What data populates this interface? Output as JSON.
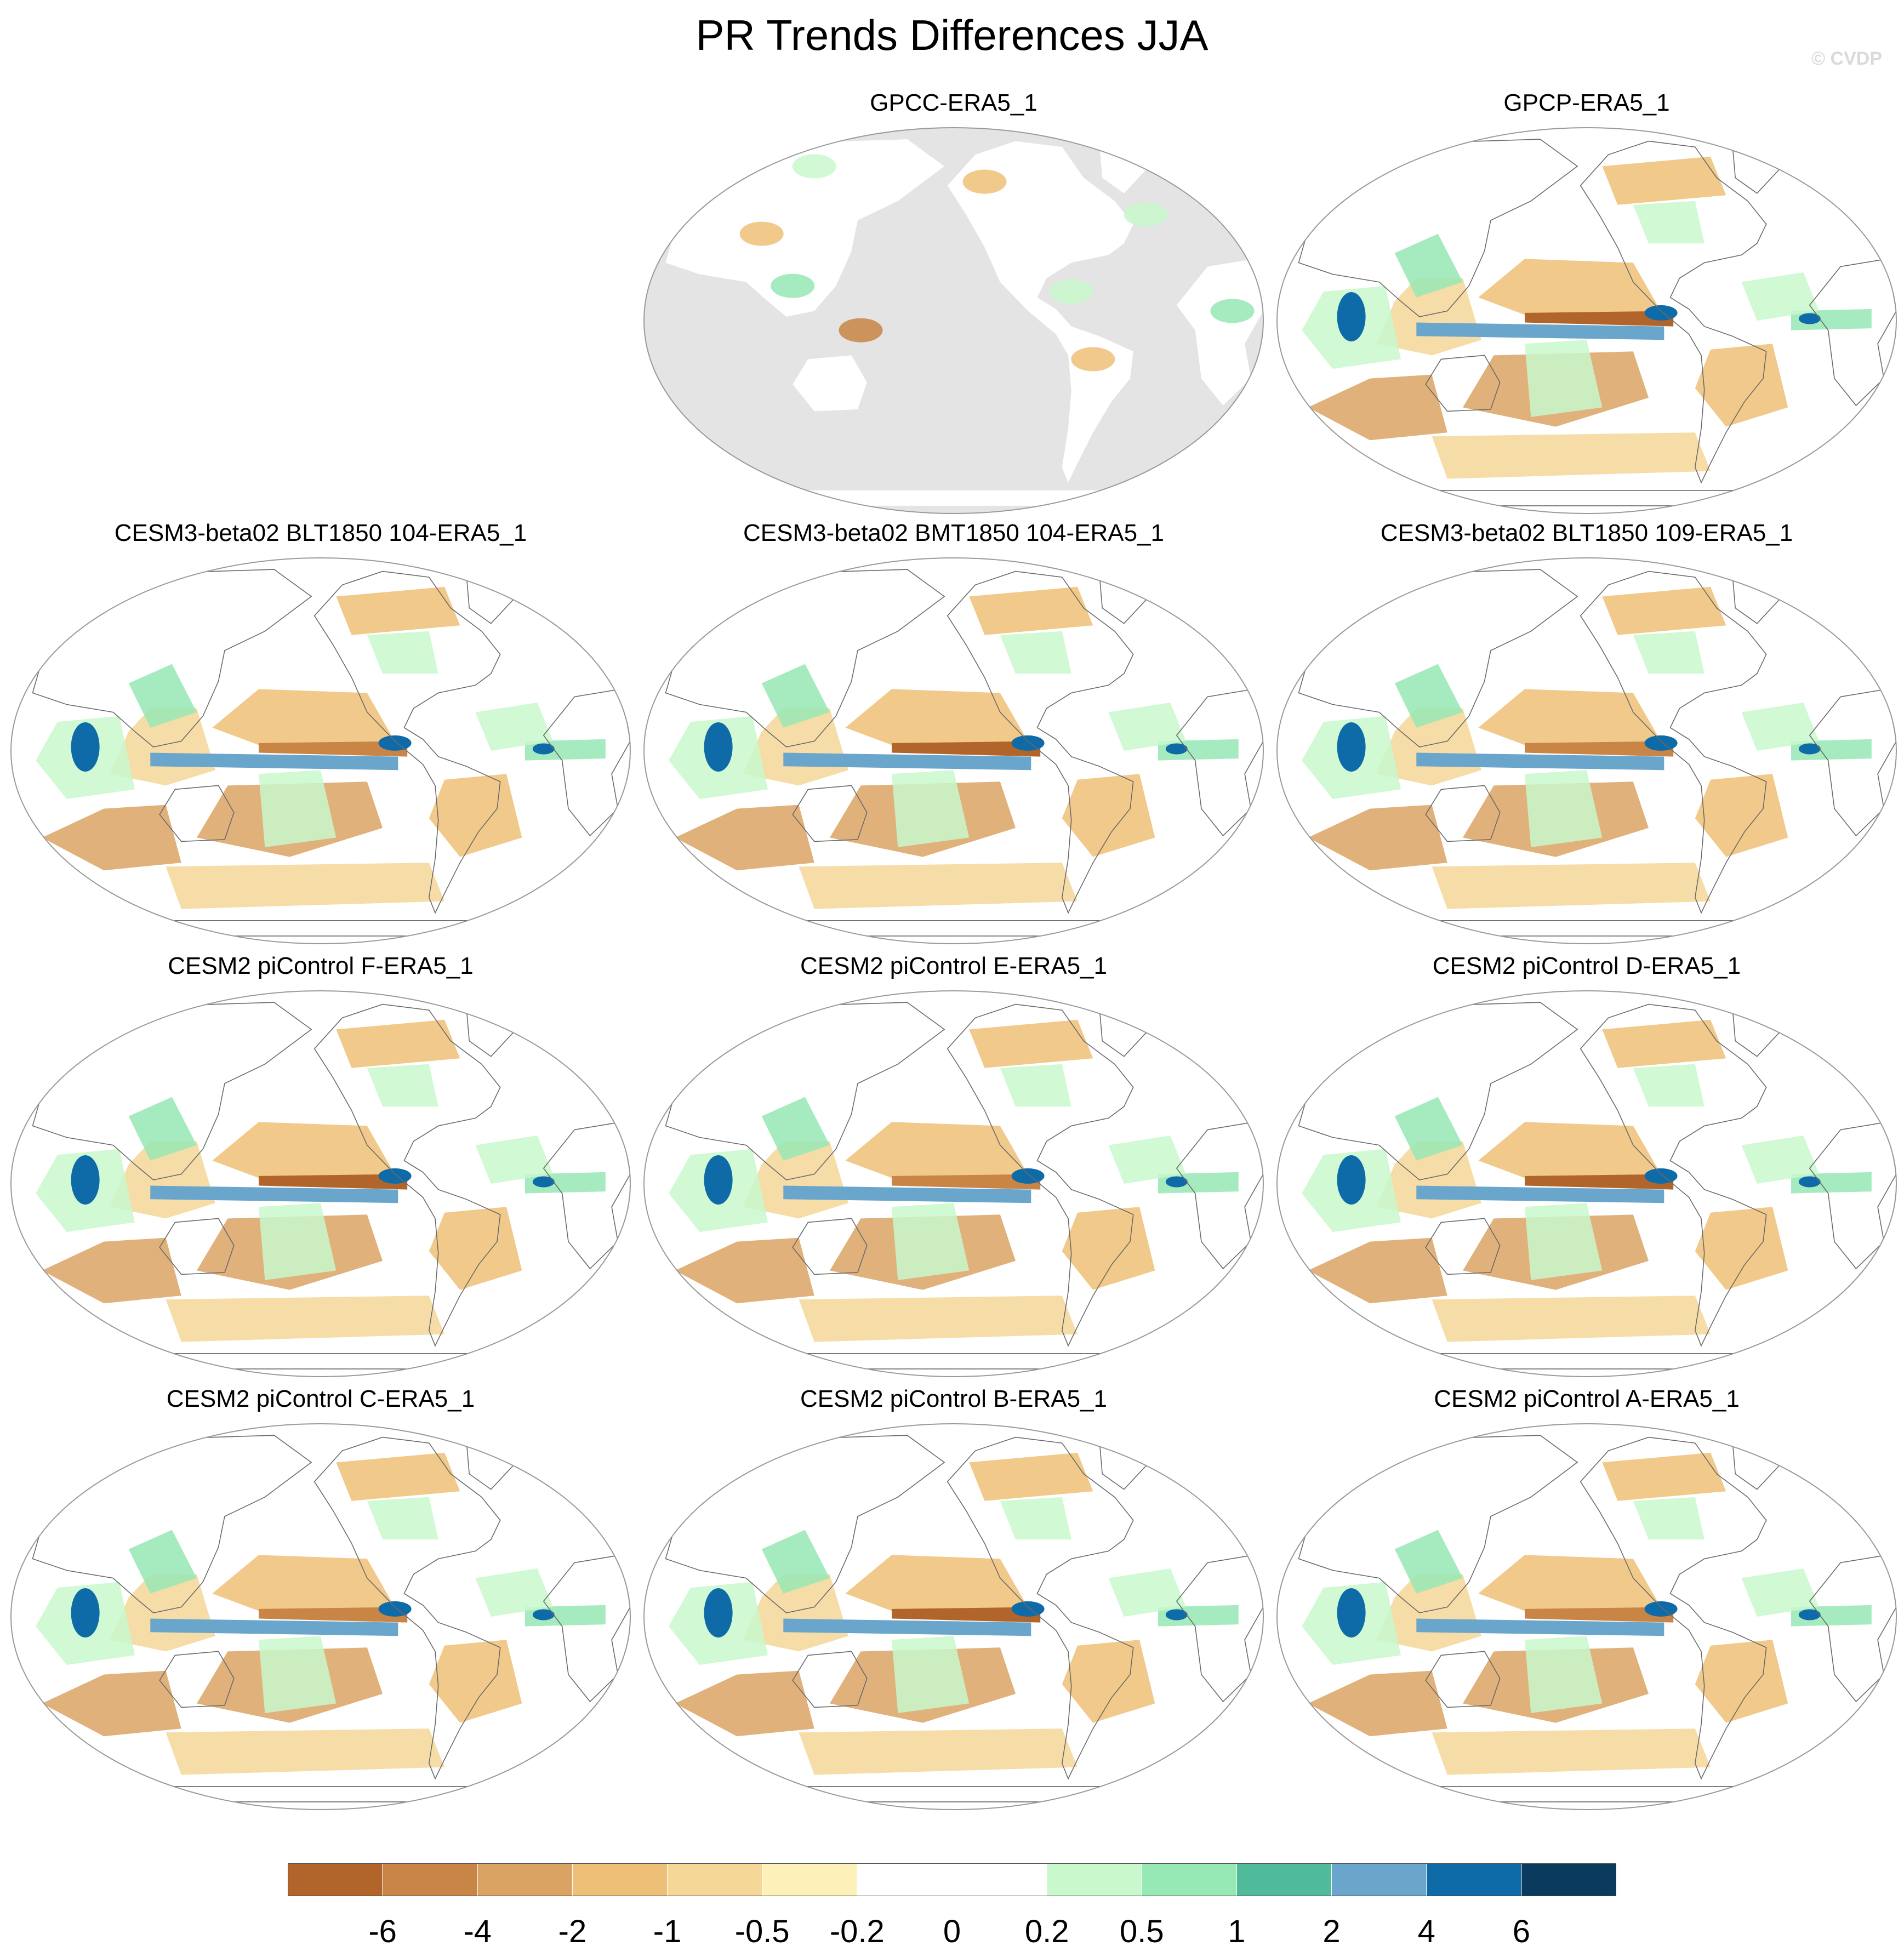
{
  "title": "PR Trends Differences JJA",
  "watermark": "© CVDP",
  "chart_data": {
    "type": "heatmap",
    "projection": "global map, Pacific-centered",
    "land_mask_color": "#e4e4e4",
    "colorbar": {
      "tick_labels": [
        "-6",
        "-4",
        "-2",
        "-1",
        "-0.5",
        "-0.2",
        "0",
        "0.2",
        "0.5",
        "1",
        "2",
        "4",
        "6"
      ],
      "colors": [
        "#b2652a",
        "#c88545",
        "#dba363",
        "#eebf76",
        "#f5d798",
        "#fdf0b8",
        "#ffffff",
        "#ffffff",
        "#c8f8cc",
        "#96e8b4",
        "#4fbb9a",
        "#6aa6cc",
        "#0f6aa8",
        "#0a3a5e"
      ]
    },
    "panels": [
      {
        "title": "GPCC-ERA5_1",
        "land_only": true
      },
      {
        "title": "GPCP-ERA5_1"
      },
      {
        "title": "CESM3-beta02 BLT1850 104-ERA5_1"
      },
      {
        "title": "CESM3-beta02 BMT1850 104-ERA5_1"
      },
      {
        "title": "CESM3-beta02 BLT1850 109-ERA5_1"
      },
      {
        "title": "CESM2 piControl F-ERA5_1"
      },
      {
        "title": "CESM2 piControl E-ERA5_1"
      },
      {
        "title": "CESM2 piControl D-ERA5_1"
      },
      {
        "title": "CESM2 piControl C-ERA5_1"
      },
      {
        "title": "CESM2 piControl B-ERA5_1"
      },
      {
        "title": "CESM2 piControl A-ERA5_1"
      }
    ]
  }
}
